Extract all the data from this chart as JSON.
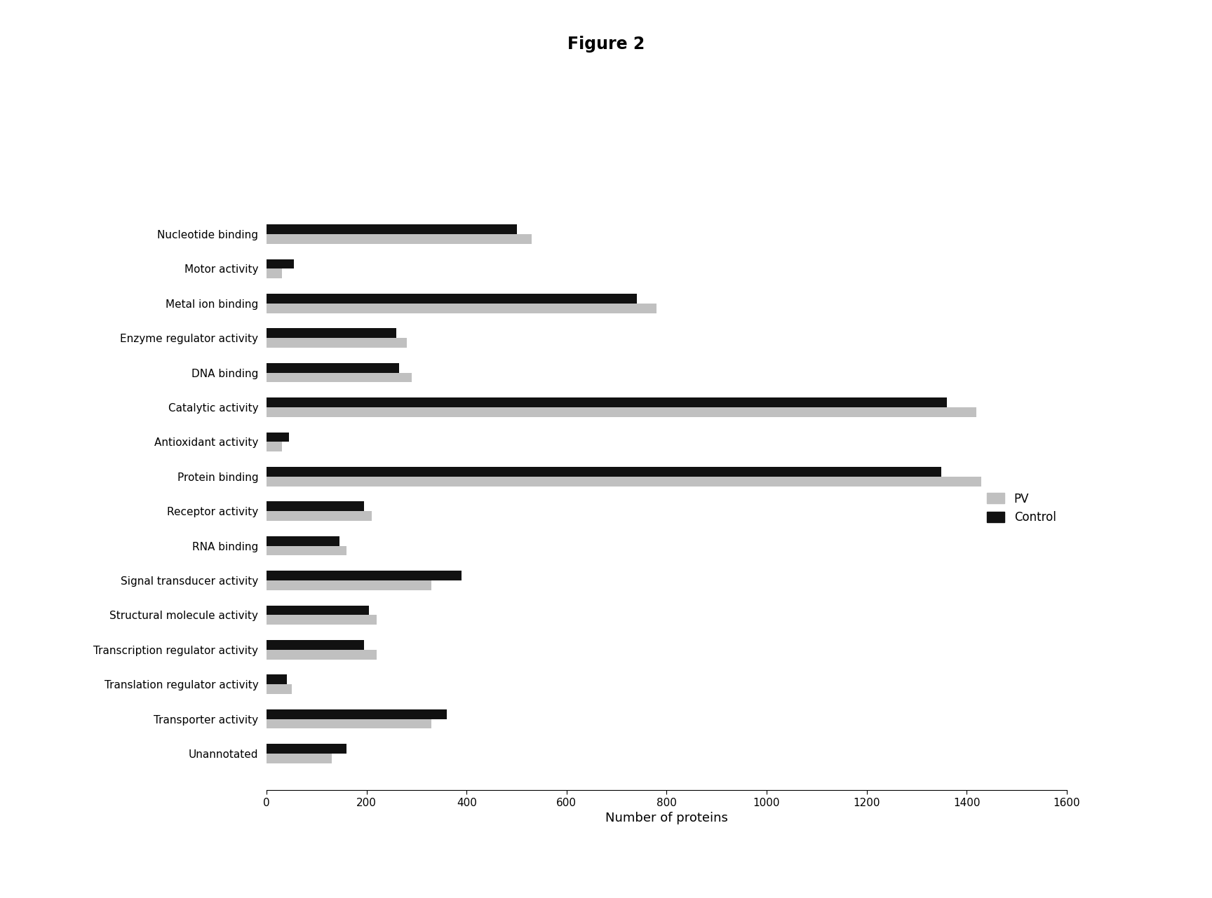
{
  "title": "Figure 2",
  "xlabel": "Number of proteins",
  "categories": [
    "Nucleotide binding",
    "Motor activity",
    "Metal ion binding",
    "Enzyme regulator activity",
    "DNA binding",
    "Catalytic activity",
    "Antioxidant activity",
    "Protein binding",
    "Receptor activity",
    "RNA binding",
    "Signal transducer activity",
    "Structural molecule activity",
    "Transcription regulator activity",
    "Translation regulator activity",
    "Transporter activity",
    "Unannotated"
  ],
  "pv_values": [
    530,
    30,
    780,
    280,
    290,
    1420,
    30,
    1430,
    210,
    160,
    330,
    220,
    220,
    50,
    330,
    130
  ],
  "control_values": [
    500,
    55,
    740,
    260,
    265,
    1360,
    45,
    1350,
    195,
    145,
    390,
    205,
    195,
    40,
    360,
    160
  ],
  "pv_color": "#c0c0c0",
  "control_color": "#111111",
  "xlim": [
    0,
    1600
  ],
  "xticks": [
    0,
    200,
    400,
    600,
    800,
    1000,
    1200,
    1400,
    1600
  ],
  "legend_labels": [
    "PV",
    "Control"
  ],
  "background_color": "#ffffff",
  "bar_height": 0.28,
  "title_fontsize": 17,
  "axis_fontsize": 13,
  "tick_fontsize": 11,
  "label_fontsize": 12
}
